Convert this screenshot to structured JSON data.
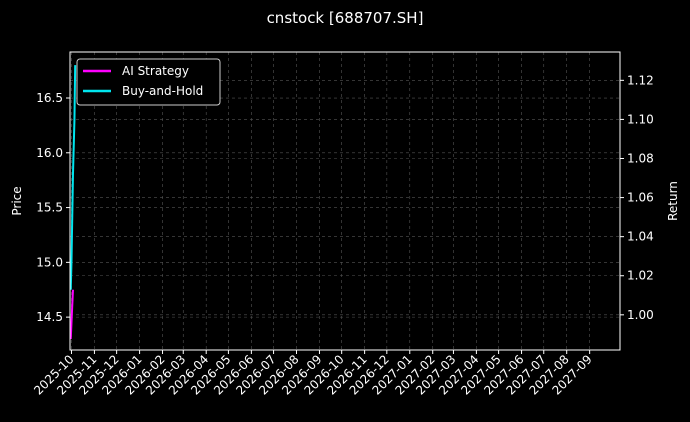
{
  "chart_data": {
    "type": "line",
    "title": "cnstock [688707.SH]",
    "ylabel": "Price",
    "ylabel_right": "Return",
    "ylim": [
      14.2,
      16.92
    ],
    "ylim_right": [
      0.982,
      1.1345
    ],
    "xlim": [
      "2025-09-29",
      "2027-10-12"
    ],
    "yticks": [
      14.5,
      15.0,
      15.5,
      16.0,
      16.5
    ],
    "yticks_right": [
      1.0,
      1.02,
      1.04,
      1.06,
      1.08,
      1.1,
      1.12
    ],
    "xticks": [
      "2025-10",
      "2025-11",
      "2025-12",
      "2026-01",
      "2026-02",
      "2026-03",
      "2026-04",
      "2026-05",
      "2026-06",
      "2026-07",
      "2026-08",
      "2026-09",
      "2026-10",
      "2026-11",
      "2026-12",
      "2027-01",
      "2027-02",
      "2027-03",
      "2027-04",
      "2027-05",
      "2027-06",
      "2027-07",
      "2027-08",
      "2027-09"
    ],
    "grid": true,
    "legend_placement": "top-left",
    "series": [
      {
        "name": "AI Strategy",
        "color": "#ff00ff",
        "x": [
          "2025-09-30",
          "2025-10-01",
          "2025-10-02",
          "2025-10-03"
        ],
        "y": [
          14.3,
          14.45,
          14.6,
          14.75
        ]
      },
      {
        "name": "Buy-and-Hold",
        "color": "#00e5ee",
        "x": [
          "2025-09-30",
          "2025-10-01",
          "2025-10-02",
          "2025-10-03",
          "2025-10-05",
          "2025-10-06"
        ],
        "y": [
          14.75,
          15.0,
          15.4,
          15.8,
          16.3,
          16.8
        ]
      }
    ]
  }
}
